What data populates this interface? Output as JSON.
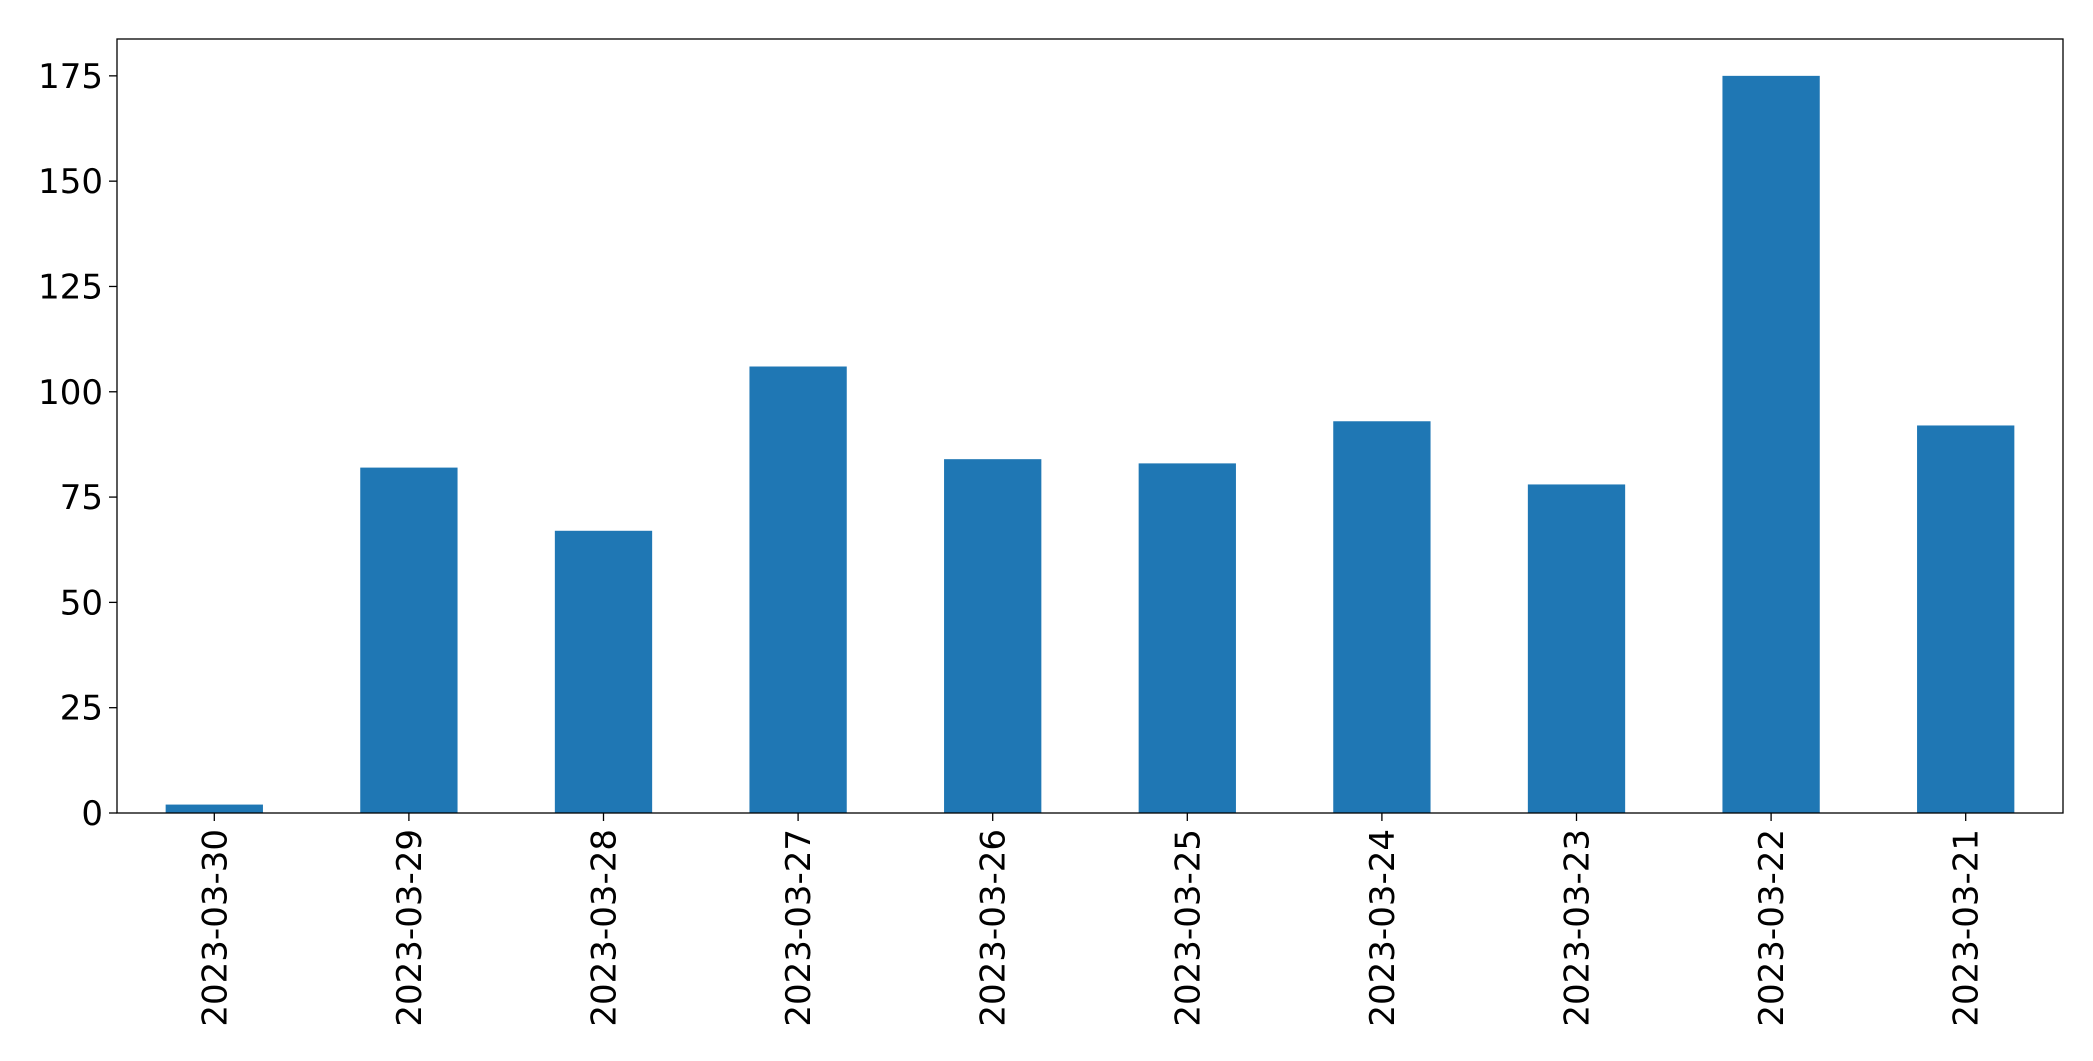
{
  "chart_data": {
    "type": "bar",
    "categories": [
      "2023-03-30",
      "2023-03-29",
      "2023-03-28",
      "2023-03-27",
      "2023-03-26",
      "2023-03-25",
      "2023-03-24",
      "2023-03-23",
      "2023-03-22",
      "2023-03-21"
    ],
    "values": [
      2,
      82,
      67,
      106,
      84,
      83,
      93,
      78,
      175,
      92
    ],
    "color": "#1f77b4",
    "ylim": [
      0,
      183.75
    ],
    "yticks": [
      0,
      25,
      50,
      75,
      100,
      125,
      150,
      175
    ],
    "grid": false
  }
}
